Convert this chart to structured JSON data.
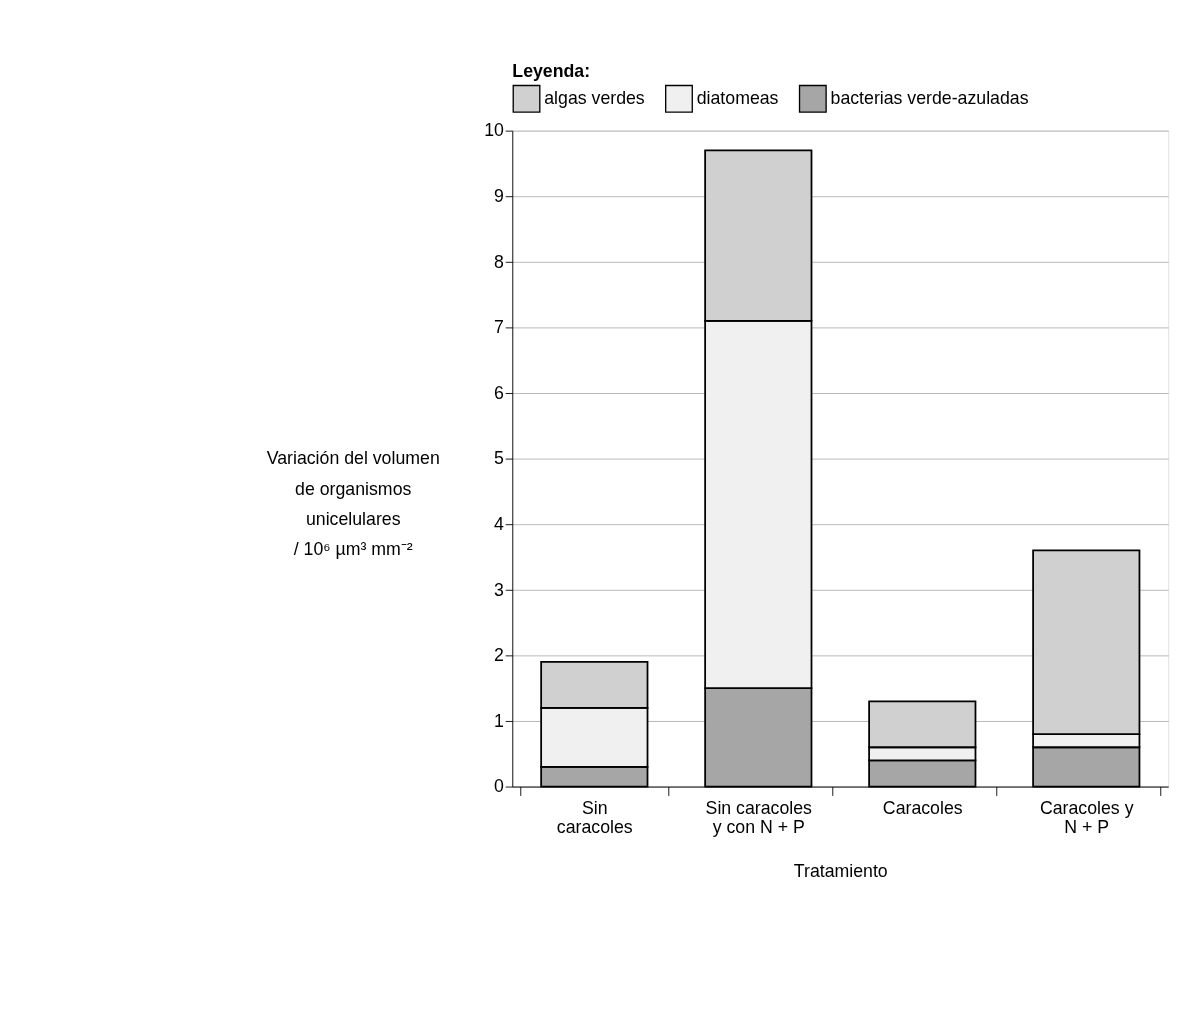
{
  "chart_data": {
    "type": "bar",
    "stacked": true,
    "categories": [
      "Sin\ncaracoles",
      "Sin caracoles\ny con N + P",
      "Caracoles",
      "Caracoles y\nN + P"
    ],
    "series": [
      {
        "name": "bacterias verde-azuladas",
        "color": "#a6a6a6",
        "values": [
          0.3,
          1.5,
          0.4,
          0.6
        ]
      },
      {
        "name": "diatomeas",
        "color": "#f0f0f0",
        "values": [
          0.9,
          5.6,
          0.2,
          0.2
        ]
      },
      {
        "name": "algas verdes",
        "color": "#d0d0d0",
        "values": [
          0.7,
          2.6,
          0.7,
          2.8
        ]
      }
    ],
    "xlabel": "Tratamiento",
    "ylabel": "Variación del volumen\nde organismos\nunicelulares\n/ 10⁶ µm³ mm⁻²",
    "legend_title": "Leyenda:",
    "legend": "top",
    "ylim": [
      0,
      10
    ],
    "yticks": [
      0,
      1,
      2,
      3,
      4,
      5,
      6,
      7,
      8,
      9,
      10
    ],
    "grid": "y"
  }
}
